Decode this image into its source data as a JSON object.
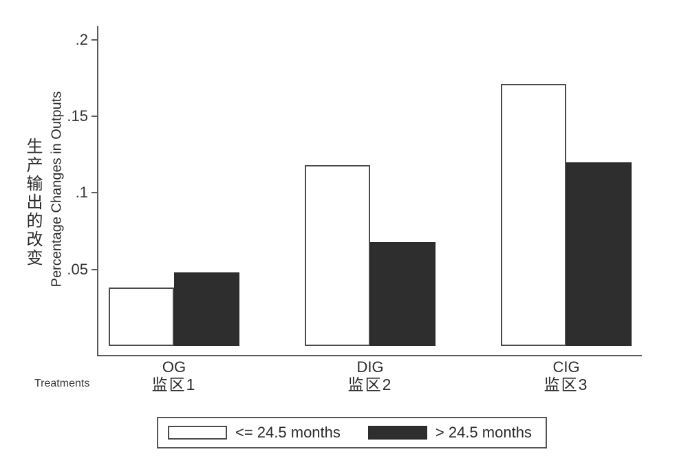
{
  "chart_data": {
    "type": "bar",
    "title": "",
    "categories": [
      "OG",
      "DIG",
      "CIG"
    ],
    "categories_zh": [
      "监区1",
      "监区2",
      "监区3"
    ],
    "series": [
      {
        "name": "<= 24.5 months",
        "values": [
          0.038,
          0.118,
          0.171
        ],
        "fill": "#ffffff",
        "stroke": "#4a4a4a"
      },
      {
        "name": "> 24.5 months",
        "values": [
          0.048,
          0.068,
          0.12
        ],
        "fill": "#2e2e2e",
        "stroke": "#2b2b2b"
      }
    ],
    "xlabel": "Treatments",
    "ylabel_zh": "生产输出的改变",
    "ylabel_en": "Percentage Changes in Outputs",
    "yticks": [
      0.05,
      0.1,
      0.15,
      0.2
    ],
    "ytick_labels": [
      ".05",
      ".1",
      ".15",
      ".2"
    ],
    "ylim": [
      0,
      0.209
    ],
    "grid": false,
    "legend_position": "bottom",
    "axis_color": "#5a5a5a",
    "text_color": "#2f2f2f",
    "background": "#ffffff"
  }
}
